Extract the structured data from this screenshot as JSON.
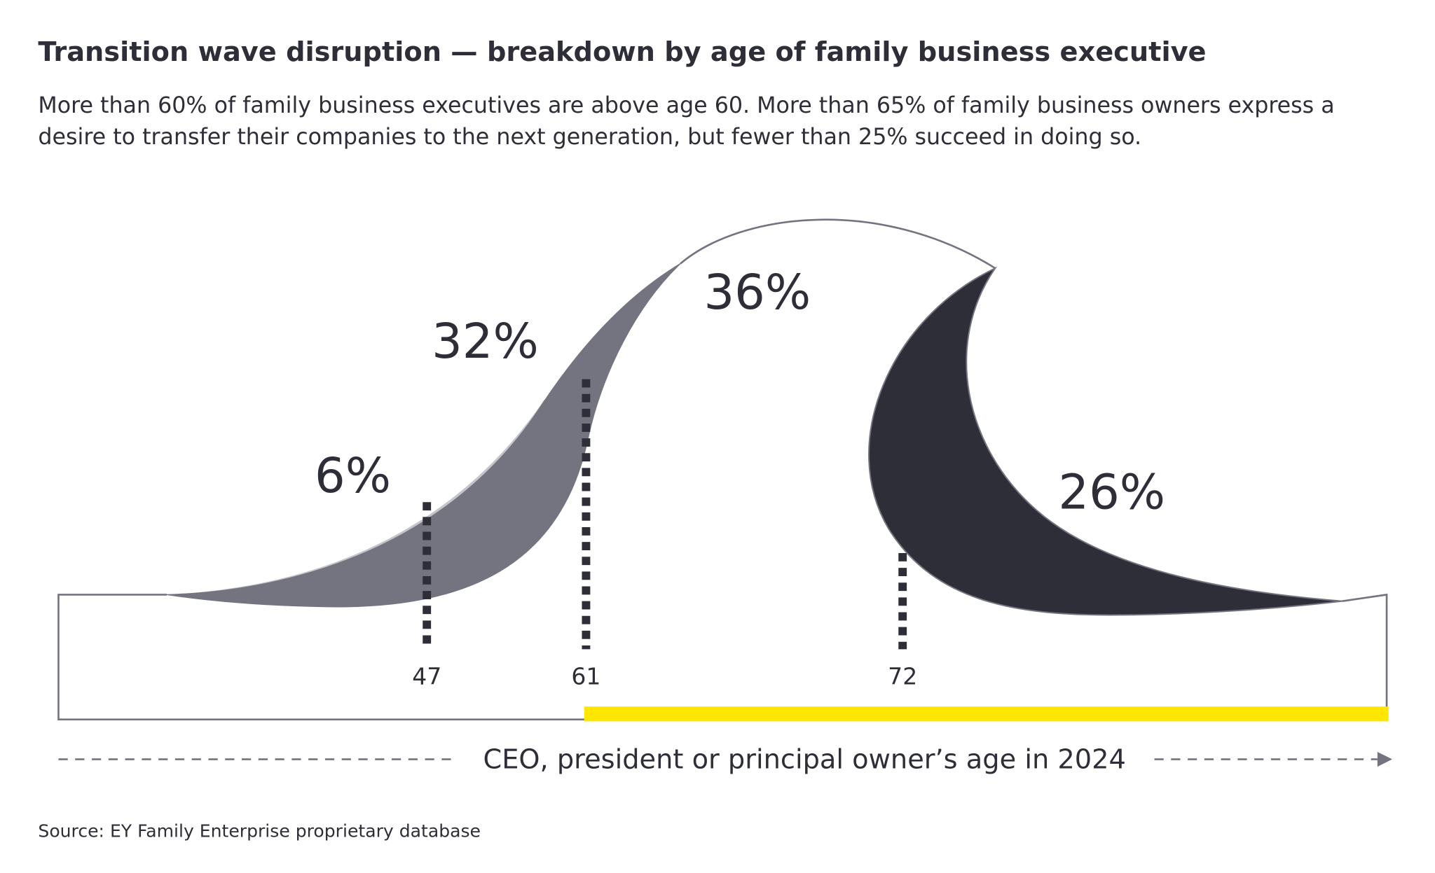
{
  "header": {
    "title": "Transition wave disruption — breakdown by age of family business executive",
    "subtitle_lines": [
      "More than 60% of family business executives are above age 60. More than 65% of family business owners express a",
      "desire to transfer their companies to the next generation, but fewer than 25% succeed in doing so."
    ]
  },
  "wave": {
    "segments": [
      "6%",
      "32%",
      "36%",
      "26%"
    ],
    "ages": [
      "47",
      "61",
      "72"
    ],
    "axis_label": "CEO, president or principal owner’s age in 2024"
  },
  "footer": {
    "source": "Source: EY Family Enterprise proprietary database"
  }
}
